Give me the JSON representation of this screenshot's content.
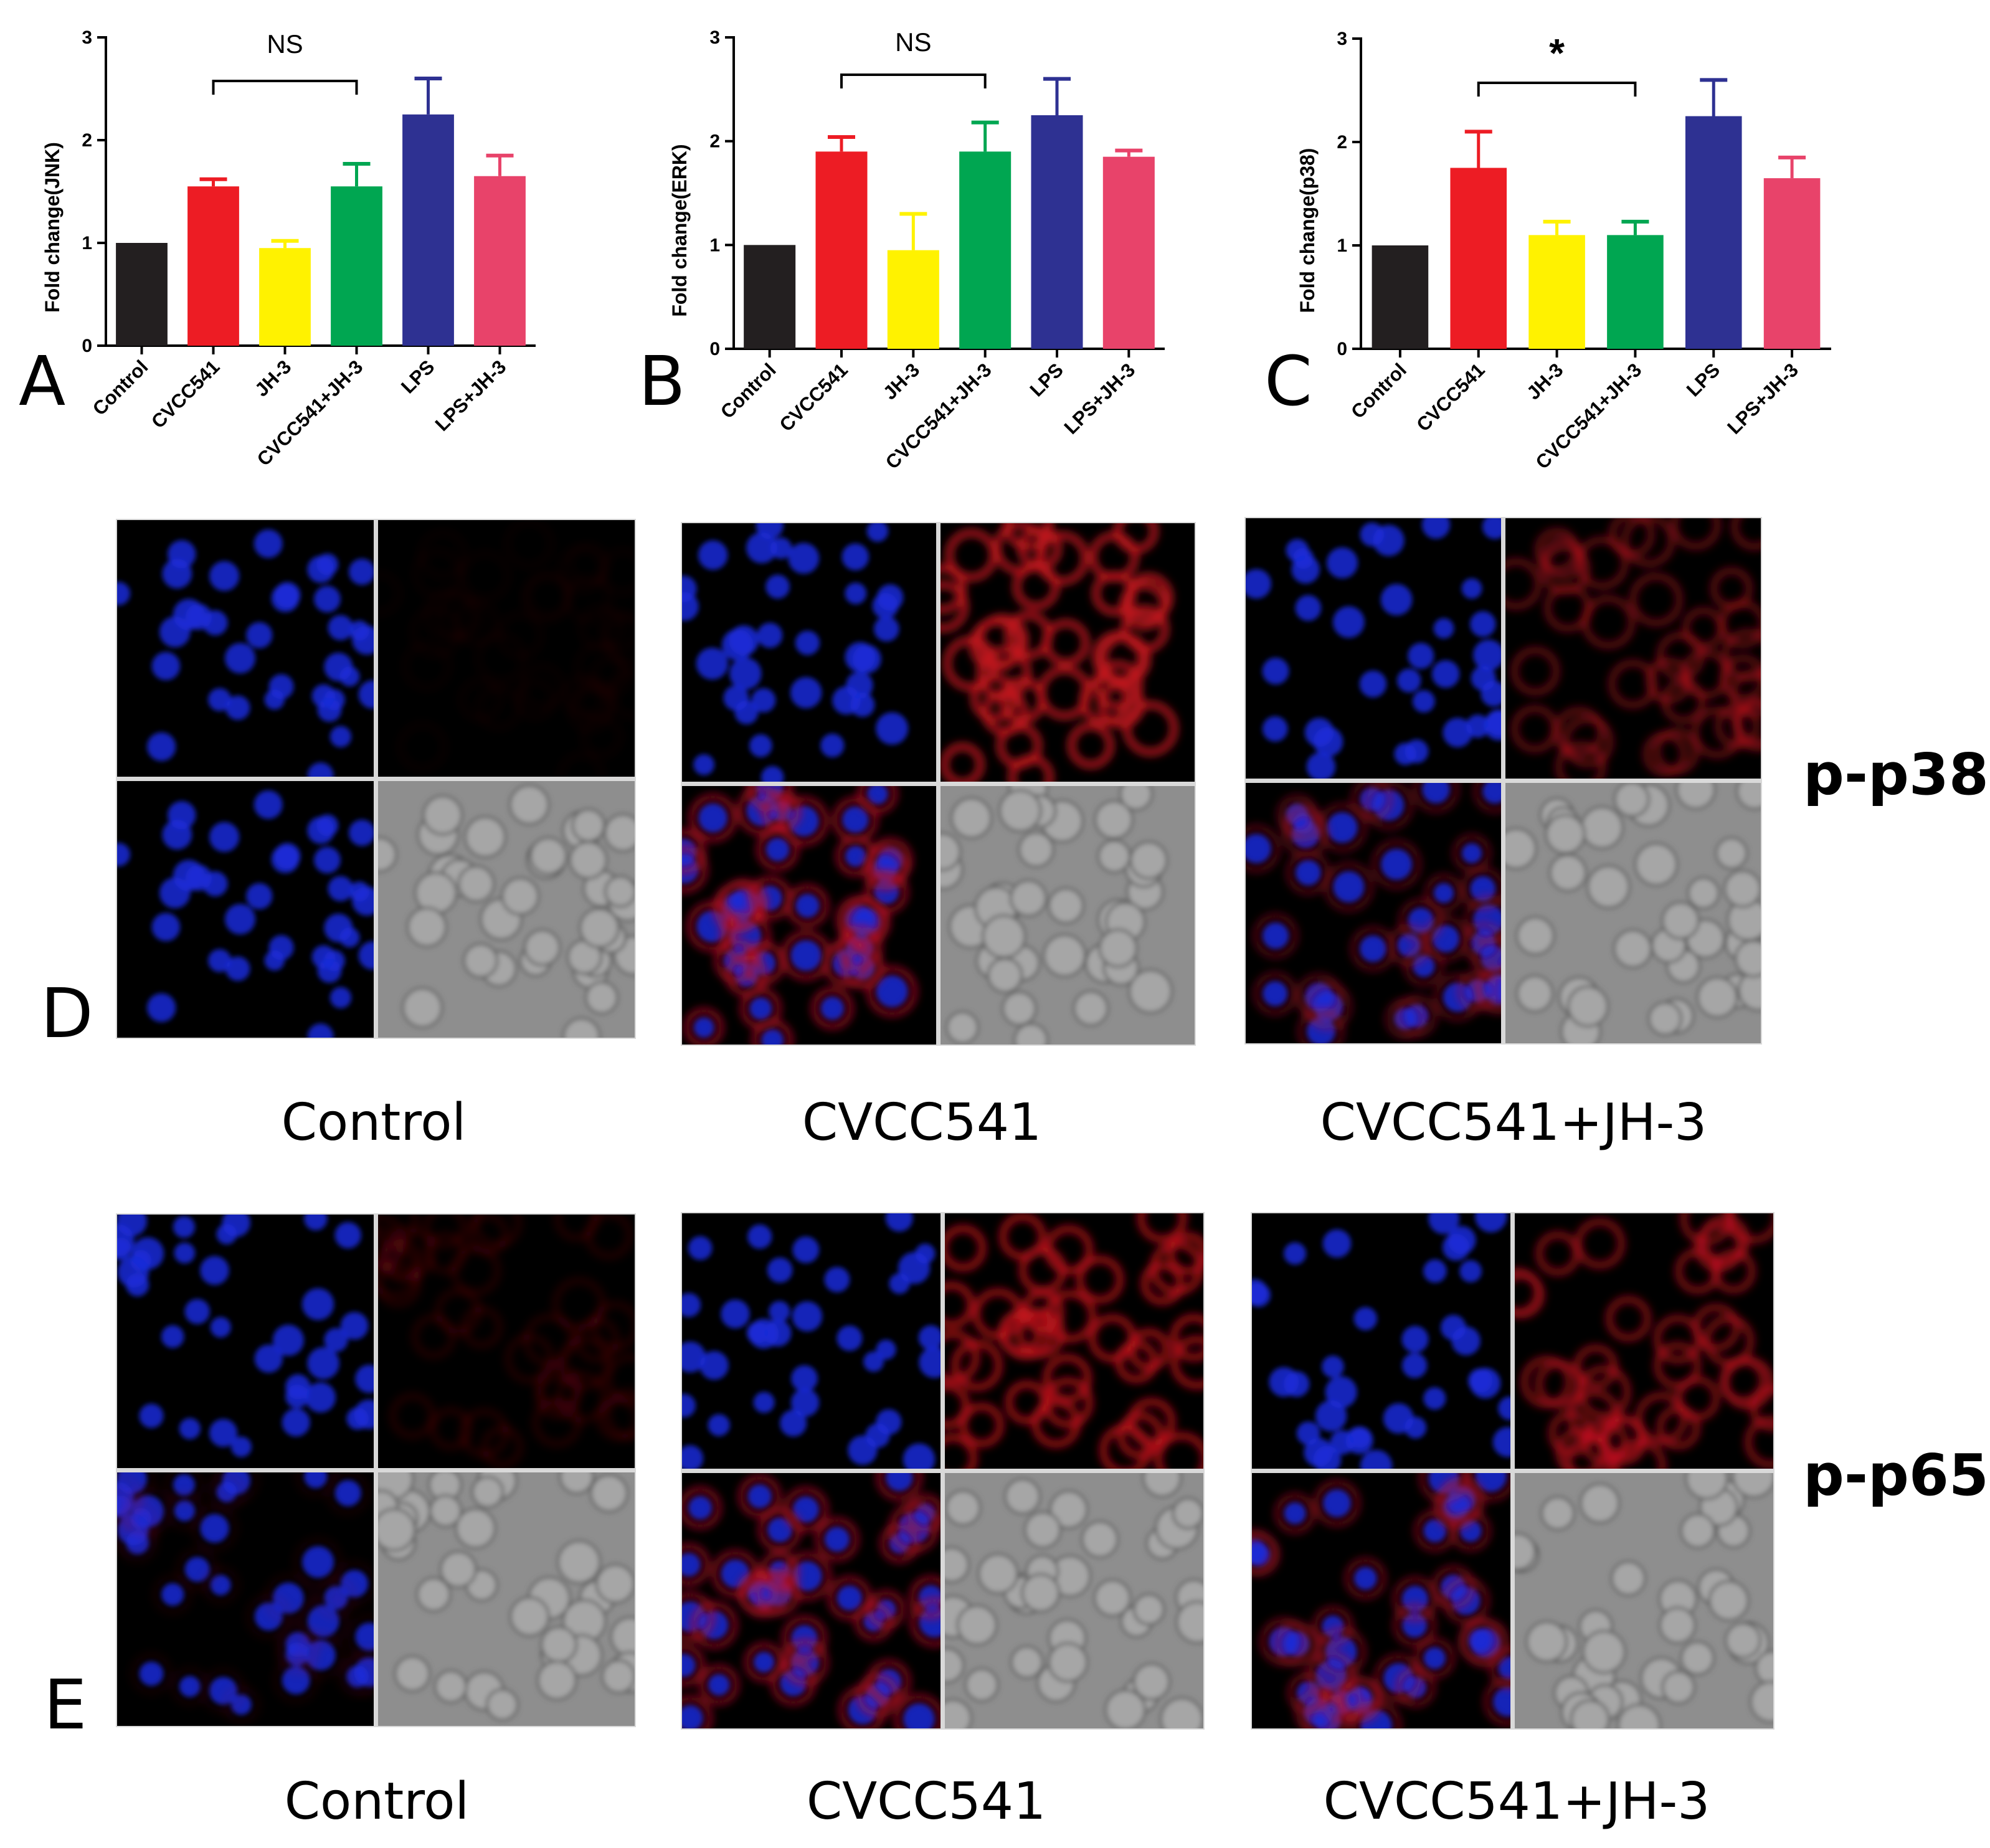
{
  "panel_letters": {
    "A": "A",
    "B": "B",
    "C": "C",
    "D": "D",
    "E": "E"
  },
  "chart_data": [
    {
      "id": "A",
      "type": "bar",
      "categories": [
        "Control",
        "CVCC541",
        "JH-3",
        "CVCC541+JH-3",
        "LPS",
        "LPS+JH-3"
      ],
      "values": [
        1.0,
        1.55,
        0.95,
        1.55,
        2.25,
        1.65
      ],
      "errors": [
        0,
        0.07,
        0.07,
        0.22,
        0.35,
        0.2
      ],
      "colors": [
        "#231f20",
        "#ed1c24",
        "#fff200",
        "#00a651",
        "#2e3192",
        "#e8436a"
      ],
      "ylabel": "Fold change(JNK)",
      "ylim": [
        0,
        3
      ],
      "yticks": [
        "0",
        "1",
        "2",
        "3"
      ],
      "significance": {
        "from": 1,
        "to": 3,
        "label": "NS"
      }
    },
    {
      "id": "B",
      "type": "bar",
      "categories": [
        "Control",
        "CVCC541",
        "JH-3",
        "CVCC541+JH-3",
        "LPS",
        "LPS+JH-3"
      ],
      "values": [
        1.0,
        1.9,
        0.95,
        1.9,
        2.25,
        1.85
      ],
      "errors": [
        0,
        0.14,
        0.35,
        0.28,
        0.35,
        0.06
      ],
      "colors": [
        "#231f20",
        "#ed1c24",
        "#fff200",
        "#00a651",
        "#2e3192",
        "#e8436a"
      ],
      "ylabel": "Fold change(ERK)",
      "ylim": [
        0,
        3
      ],
      "yticks": [
        "0",
        "1",
        "2",
        "3"
      ],
      "significance": {
        "from": 1,
        "to": 3,
        "label": "NS"
      }
    },
    {
      "id": "C",
      "type": "bar",
      "categories": [
        "Control",
        "CVCC541",
        "JH-3",
        "CVCC541+JH-3",
        "LPS",
        "LPS+JH-3"
      ],
      "values": [
        1.0,
        1.75,
        1.1,
        1.1,
        2.25,
        1.65
      ],
      "errors": [
        0,
        0.35,
        0.13,
        0.13,
        0.35,
        0.2
      ],
      "colors": [
        "#231f20",
        "#ed1c24",
        "#fff200",
        "#00a651",
        "#2e3192",
        "#e8436a"
      ],
      "ylabel": "Fold change(p38)",
      "ylim": [
        0,
        3
      ],
      "yticks": [
        "0",
        "1",
        "2",
        "3"
      ],
      "significance": {
        "from": 1,
        "to": 3,
        "label": "*"
      }
    }
  ],
  "microscopy": {
    "D": {
      "marker": "p-p38",
      "groups": [
        {
          "label": "Control",
          "red_intensity": 0.04,
          "merge_intensity": 0.0
        },
        {
          "label": "CVCC541",
          "red_intensity": 0.85,
          "merge_intensity": 0.75
        },
        {
          "label": "CVCC541+JH-3",
          "red_intensity": 0.45,
          "merge_intensity": 0.45
        }
      ]
    },
    "E": {
      "marker": "p-p65",
      "groups": [
        {
          "label": "Control",
          "red_intensity": 0.15,
          "merge_intensity": 0.1
        },
        {
          "label": "CVCC541",
          "red_intensity": 0.75,
          "merge_intensity": 0.7
        },
        {
          "label": "CVCC541+JH-3",
          "red_intensity": 0.6,
          "merge_intensity": 0.55
        }
      ]
    }
  }
}
